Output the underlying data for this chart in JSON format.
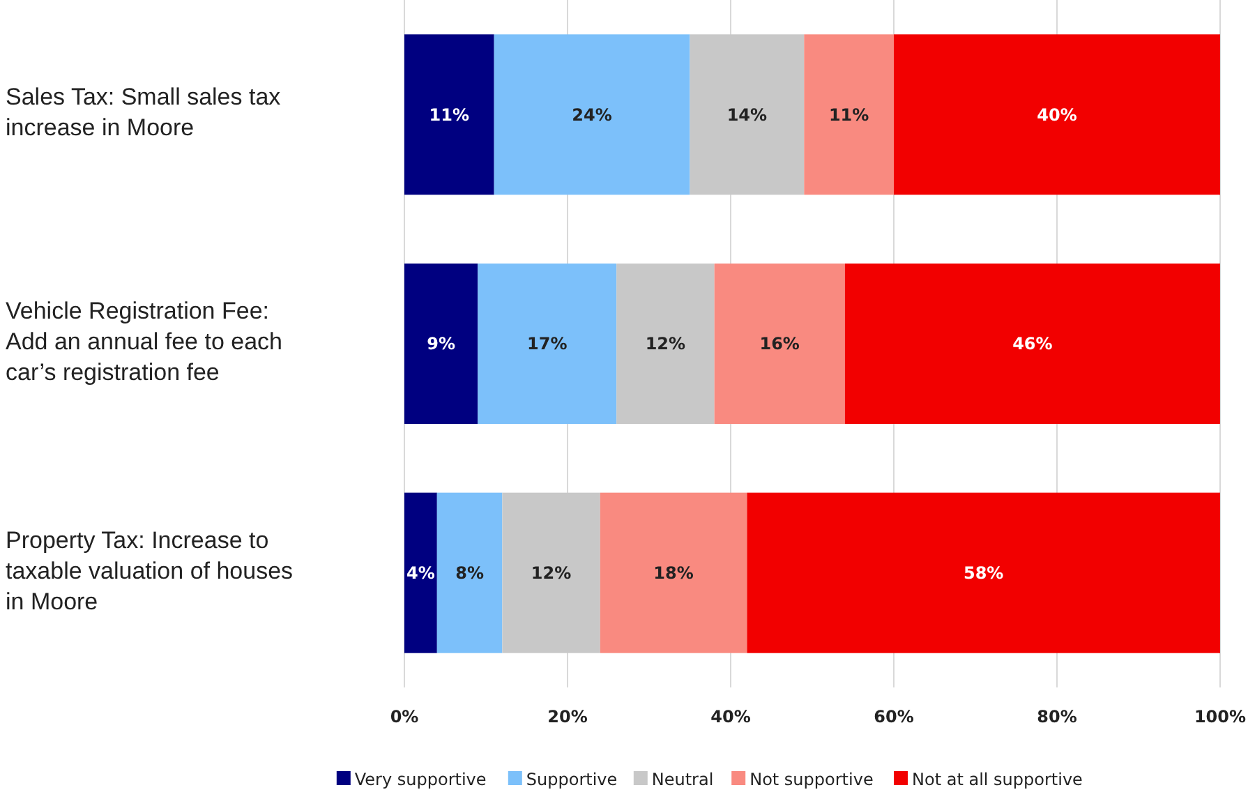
{
  "chart_data": {
    "type": "bar",
    "orientation": "horizontal",
    "stacked": true,
    "categories": [
      "Sales Tax: Small sales tax increase in Moore",
      "Vehicle Registration Fee: Add an annual fee to each car’s registration fee",
      "Property Tax: Increase to taxable valuation of houses in Moore"
    ],
    "series": [
      {
        "name": "Very supportive",
        "color": "#000080",
        "values": [
          11,
          9,
          4
        ],
        "value_labels": [
          "11%",
          "9%",
          "4%"
        ]
      },
      {
        "name": "Supportive",
        "color": "#7cc0fa",
        "values": [
          24,
          17,
          8
        ],
        "value_labels": [
          "24%",
          "17%",
          "8%"
        ]
      },
      {
        "name": "Neutral",
        "color": "#c8c8c8",
        "values": [
          14,
          12,
          12
        ],
        "value_labels": [
          "14%",
          "12%",
          "12%"
        ]
      },
      {
        "name": "Not supportive",
        "color": "#f98a80",
        "values": [
          11,
          16,
          18
        ],
        "value_labels": [
          "11%",
          "16%",
          "18%"
        ]
      },
      {
        "name": "Not at all supportive",
        "color": "#f20000",
        "values": [
          40,
          46,
          58
        ],
        "value_labels": [
          "40%",
          "46%",
          "58%"
        ]
      }
    ],
    "xlim": [
      0,
      100
    ],
    "xticks": [
      {
        "value": 0,
        "label": "0%"
      },
      {
        "value": 20,
        "label": "20%"
      },
      {
        "value": 40,
        "label": "40%"
      },
      {
        "value": 60,
        "label": "60%"
      },
      {
        "value": 80,
        "label": "80%"
      },
      {
        "value": 100,
        "label": "100%"
      }
    ],
    "grid": "x",
    "legend": "bottom"
  }
}
